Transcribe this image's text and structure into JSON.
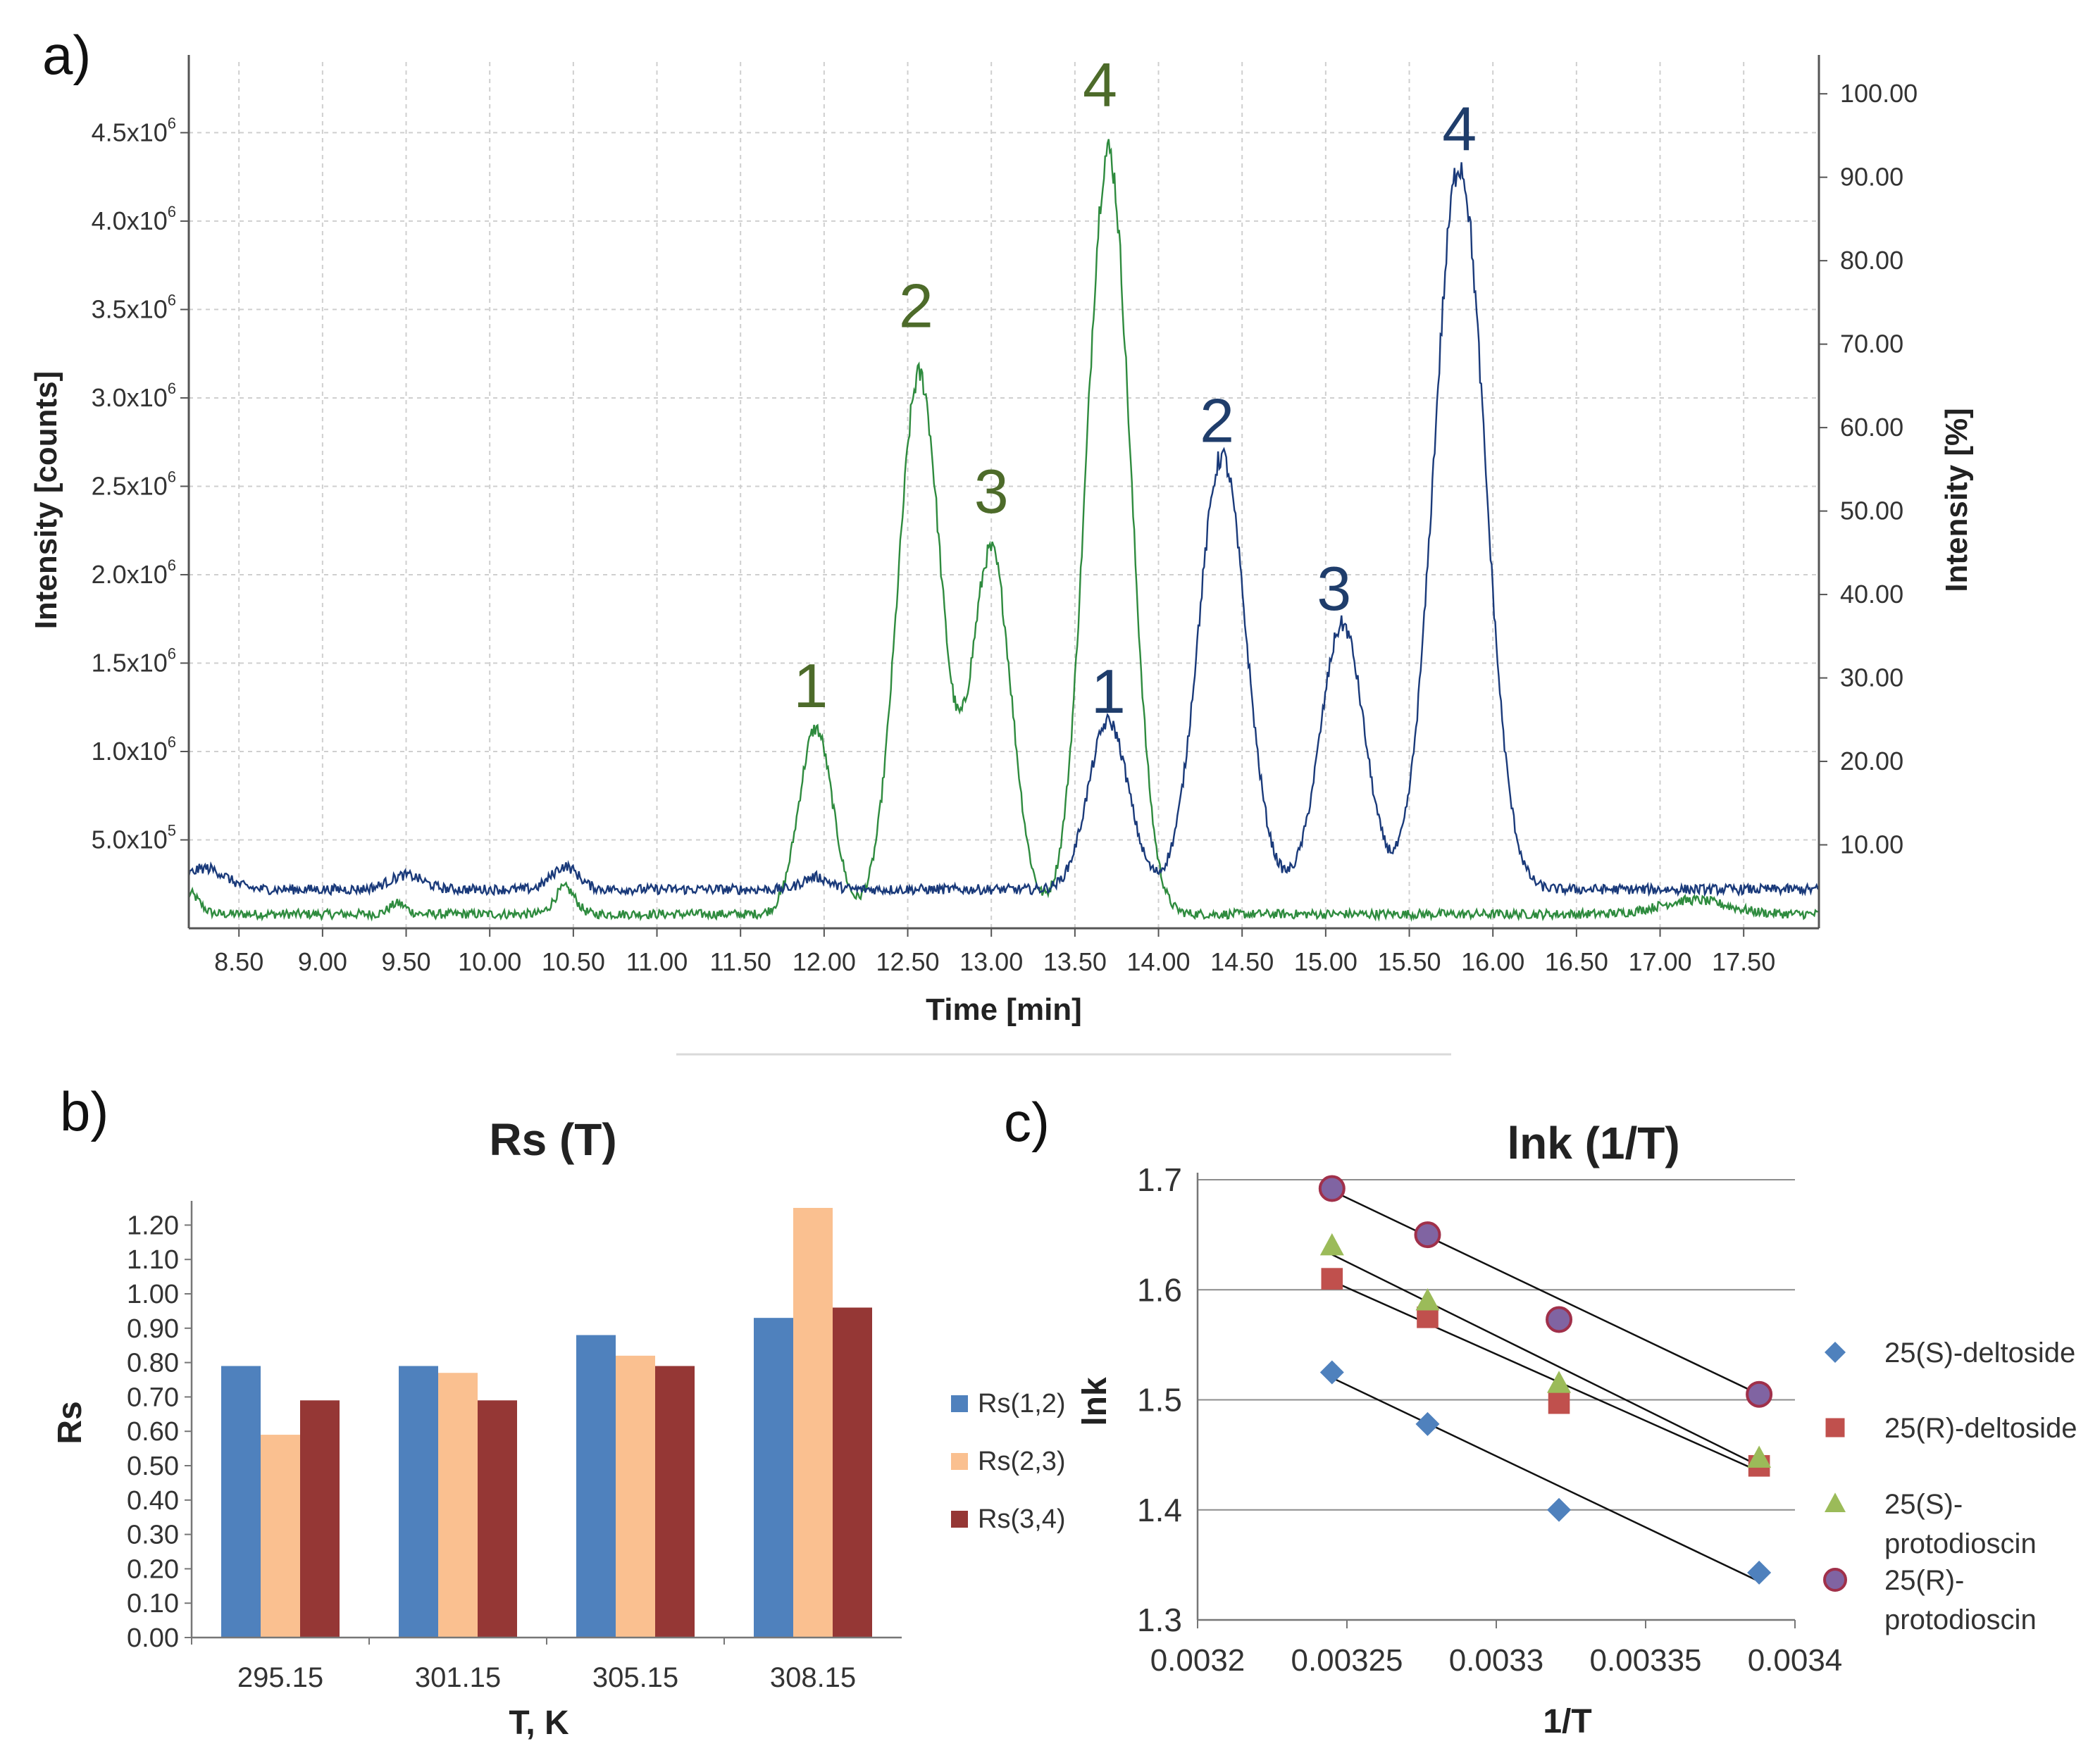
{
  "panels": {
    "a": {
      "label": "a)"
    },
    "b": {
      "label": "b)"
    },
    "c": {
      "label": "c)"
    }
  },
  "chart_data": [
    {
      "id": "a",
      "type": "line",
      "title": "",
      "xlabel": "Time [min]",
      "ylabel": "Intensity [counts]",
      "ylabel_right": "Intensity [%]",
      "xlim": [
        8.2,
        17.95
      ],
      "ylim": [
        0,
        4.9
      ],
      "ylim_right": [
        0,
        100
      ],
      "x_ticks": [
        "8.50",
        "9.00",
        "9.50",
        "10.00",
        "10.50",
        "11.00",
        "11.50",
        "12.00",
        "12.50",
        "13.00",
        "13.50",
        "14.00",
        "14.50",
        "15.00",
        "15.50",
        "16.00",
        "16.50",
        "17.00",
        "17.50"
      ],
      "y_ticks": [
        {
          "value": 0.5,
          "mant": "5.0x10",
          "exp": "5"
        },
        {
          "value": 1.0,
          "mant": "1.0x10",
          "exp": "6"
        },
        {
          "value": 1.5,
          "mant": "1.5x10",
          "exp": "6"
        },
        {
          "value": 2.0,
          "mant": "2.0x10",
          "exp": "6"
        },
        {
          "value": 2.5,
          "mant": "2.5x10",
          "exp": "6"
        },
        {
          "value": 3.0,
          "mant": "3.0x10",
          "exp": "6"
        },
        {
          "value": 3.5,
          "mant": "3.5x10",
          "exp": "6"
        },
        {
          "value": 4.0,
          "mant": "4.0x10",
          "exp": "6"
        },
        {
          "value": 4.5,
          "mant": "4.5x10",
          "exp": "6"
        }
      ],
      "y_right_ticks": [
        "10.00",
        "20.00",
        "30.00",
        "40.00",
        "50.00",
        "60.00",
        "70.00",
        "80.00",
        "90.00",
        "100.00"
      ],
      "series": [
        {
          "name": "green",
          "color": "#2e8b3e",
          "baseline": 0.08,
          "peaks": [
            [
              8.2,
              0.12,
              0.06
            ],
            [
              9.45,
              0.06,
              0.05
            ],
            [
              10.45,
              0.15,
              0.06
            ],
            [
              11.95,
              1.05,
              0.1
            ],
            [
              12.57,
              3.05,
              0.13
            ],
            [
              13.0,
              2.05,
              0.12
            ],
            [
              13.7,
              4.32,
              0.13
            ],
            [
              17.2,
              0.08,
              0.2
            ]
          ]
        },
        {
          "name": "blue",
          "color": "#1a3a7a",
          "baseline": 0.22,
          "peaks": [
            [
              8.3,
              0.12,
              0.12
            ],
            [
              9.5,
              0.08,
              0.1
            ],
            [
              10.45,
              0.13,
              0.08
            ],
            [
              11.95,
              0.07,
              0.08
            ],
            [
              13.7,
              0.95,
              0.12
            ],
            [
              14.38,
              2.45,
              0.14
            ],
            [
              15.1,
              1.5,
              0.13
            ],
            [
              15.8,
              4.1,
              0.15
            ]
          ]
        }
      ],
      "peak_labels": [
        {
          "text": "1",
          "x": 11.92,
          "y": 1.25,
          "color": "#4d6b2a"
        },
        {
          "text": "2",
          "x": 12.55,
          "y": 3.4,
          "color": "#4d6b2a"
        },
        {
          "text": "3",
          "x": 13.0,
          "y": 2.35,
          "color": "#4d6b2a"
        },
        {
          "text": "4",
          "x": 13.65,
          "y": 4.65,
          "color": "#4d6b2a"
        },
        {
          "text": "1",
          "x": 13.7,
          "y": 1.22,
          "color": "#1f3d6b"
        },
        {
          "text": "2",
          "x": 14.35,
          "y": 2.75,
          "color": "#1f3d6b"
        },
        {
          "text": "3",
          "x": 15.05,
          "y": 1.8,
          "color": "#1f3d6b"
        },
        {
          "text": "4",
          "x": 15.8,
          "y": 4.4,
          "color": "#1f3d6b"
        }
      ]
    },
    {
      "id": "b",
      "type": "bar",
      "title": "Rs (T)",
      "xlabel": "T, K",
      "ylabel": "Rs",
      "ylim": [
        0,
        1.25
      ],
      "y_ticks": [
        "0.00",
        "0.10",
        "0.20",
        "0.30",
        "0.40",
        "0.50",
        "0.60",
        "0.70",
        "0.80",
        "0.90",
        "1.00",
        "1.10",
        "1.20"
      ],
      "categories": [
        "295.15",
        "301.15",
        "305.15",
        "308.15"
      ],
      "series": [
        {
          "name": "Rs(1,2)",
          "color": "#4f81bd",
          "values": [
            0.79,
            0.79,
            0.88,
            0.93
          ]
        },
        {
          "name": "Rs(2,3)",
          "color": "#fac090",
          "values": [
            0.59,
            0.77,
            0.82,
            1.25
          ]
        },
        {
          "name": "Rs(3,4)",
          "color": "#953735",
          "values": [
            0.69,
            0.69,
            0.79,
            0.96
          ]
        }
      ]
    },
    {
      "id": "c",
      "type": "scatter",
      "title": "lnk (1/T)",
      "xlabel": "1/T",
      "ylabel": "lnk",
      "xlim": [
        0.0032,
        0.0034
      ],
      "ylim": [
        1.3,
        1.7
      ],
      "x_ticks": [
        "0.0032",
        "0.00325",
        "0.0033",
        "0.00335",
        "0.0034"
      ],
      "y_ticks": [
        "1.3",
        "1.4",
        "1.5",
        "1.6",
        "1.7"
      ],
      "series": [
        {
          "name": "25(S)-deltoside",
          "legend_lines": [
            "25(S)-deltoside"
          ],
          "marker": "diamond",
          "color": "#4f81bd",
          "x": [
            0.003245,
            0.003277,
            0.003321,
            0.003388
          ],
          "y": [
            1.525,
            1.478,
            1.4,
            1.343
          ],
          "fit": [
            [
              0.003245,
              1.52
            ],
            [
              0.003388,
              1.335
            ]
          ]
        },
        {
          "name": "25(R)-deltoside",
          "legend_lines": [
            "25(R)-deltoside"
          ],
          "marker": "square",
          "color": "#c0504d",
          "x": [
            0.003245,
            0.003277,
            0.003321,
            0.003388
          ],
          "y": [
            1.61,
            1.575,
            1.497,
            1.44
          ],
          "fit": [
            [
              0.003245,
              1.608
            ],
            [
              0.003388,
              1.435
            ]
          ]
        },
        {
          "name": "25(S)-protodioscin",
          "legend_lines": [
            "25(S)-",
            "protodioscin"
          ],
          "marker": "triangle",
          "color": "#9bbb59",
          "x": [
            0.003245,
            0.003277,
            0.003321,
            0.003388
          ],
          "y": [
            1.64,
            1.59,
            1.515,
            1.447
          ],
          "fit": [
            [
              0.003245,
              1.632
            ],
            [
              0.003388,
              1.44
            ]
          ]
        },
        {
          "name": "25(R)-protodioscin",
          "legend_lines": [
            "25(R)-",
            "protodioscin"
          ],
          "marker": "circle",
          "color": "#8064a2",
          "x": [
            0.003245,
            0.003277,
            0.003321,
            0.003388
          ],
          "y": [
            1.692,
            1.65,
            1.573,
            1.505
          ],
          "fit": [
            [
              0.003245,
              1.69
            ],
            [
              0.003388,
              1.505
            ]
          ]
        }
      ]
    }
  ]
}
